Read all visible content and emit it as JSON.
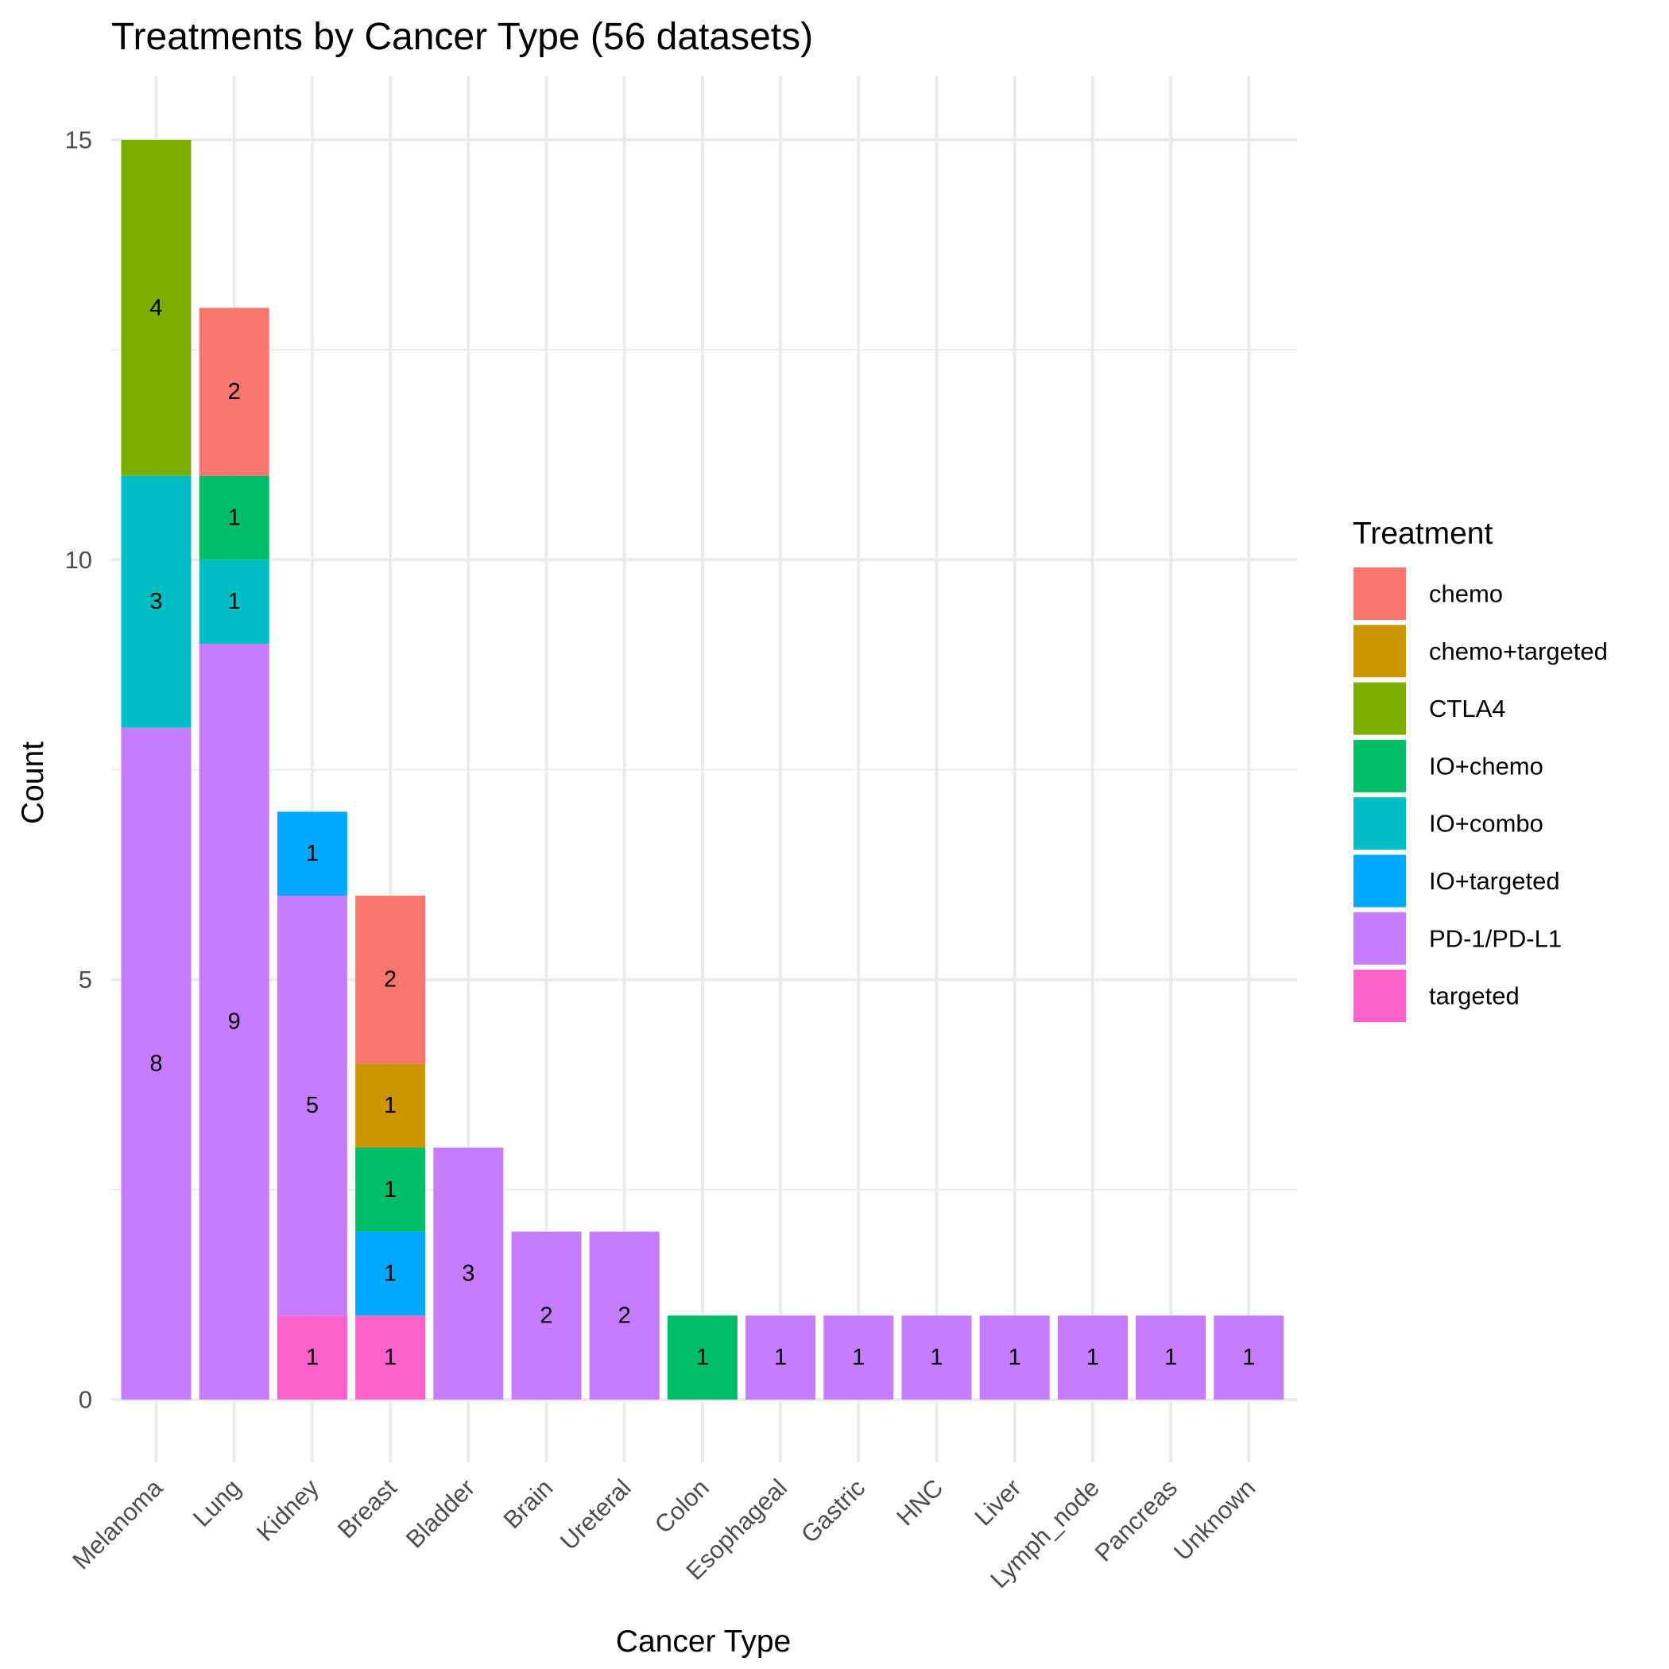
{
  "chart_data": {
    "type": "bar",
    "stacked": true,
    "title": "Treatments by Cancer Type (56 datasets)",
    "xlabel": "Cancer Type",
    "ylabel": "Count",
    "ylim": [
      0,
      15
    ],
    "yticks": [
      0,
      5,
      10,
      15
    ],
    "grid": true,
    "legend_title": "Treatment",
    "legend_position": "right",
    "categories": [
      "Melanoma",
      "Lung",
      "Kidney",
      "Breast",
      "Bladder",
      "Brain",
      "Ureteral",
      "Colon",
      "Esophageal",
      "Gastric",
      "HNC",
      "Liver",
      "Lymph_node",
      "Pancreas",
      "Unknown"
    ],
    "series": [
      {
        "name": "chemo",
        "color": "#F8766D",
        "values": [
          0,
          2,
          0,
          2,
          0,
          0,
          0,
          0,
          0,
          0,
          0,
          0,
          0,
          0,
          0
        ]
      },
      {
        "name": "chemo+targeted",
        "color": "#CD9600",
        "values": [
          0,
          0,
          0,
          1,
          0,
          0,
          0,
          0,
          0,
          0,
          0,
          0,
          0,
          0,
          0
        ]
      },
      {
        "name": "CTLA4",
        "color": "#7CAE00",
        "values": [
          4,
          0,
          0,
          0,
          0,
          0,
          0,
          0,
          0,
          0,
          0,
          0,
          0,
          0,
          0
        ]
      },
      {
        "name": "IO+chemo",
        "color": "#00BE67",
        "values": [
          0,
          1,
          0,
          1,
          0,
          0,
          0,
          1,
          0,
          0,
          0,
          0,
          0,
          0,
          0
        ]
      },
      {
        "name": "IO+combo",
        "color": "#00BFC4",
        "values": [
          3,
          1,
          0,
          0,
          0,
          0,
          0,
          0,
          0,
          0,
          0,
          0,
          0,
          0,
          0
        ]
      },
      {
        "name": "IO+targeted",
        "color": "#00A9FF",
        "values": [
          0,
          0,
          1,
          1,
          0,
          0,
          0,
          0,
          0,
          0,
          0,
          0,
          0,
          0,
          0
        ]
      },
      {
        "name": "PD-1/PD-L1",
        "color": "#C77CFF",
        "values": [
          8,
          9,
          5,
          0,
          3,
          2,
          2,
          0,
          1,
          1,
          1,
          1,
          1,
          1,
          1
        ]
      },
      {
        "name": "targeted",
        "color": "#FF61CC",
        "values": [
          0,
          0,
          1,
          1,
          0,
          0,
          0,
          0,
          0,
          0,
          0,
          0,
          0,
          0,
          0
        ]
      }
    ]
  }
}
